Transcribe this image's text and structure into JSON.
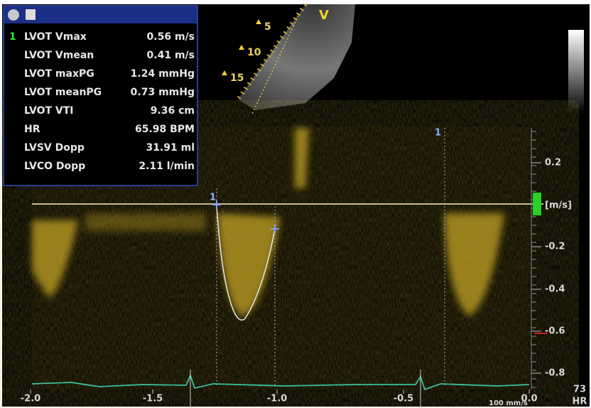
{
  "panel": {
    "rows": [
      {
        "index": "1",
        "label": "LVOT Vmax",
        "value": "0.56 m/s"
      },
      {
        "label": "LVOT Vmean",
        "value": "0.41 m/s"
      },
      {
        "label": "LVOT maxPG",
        "value": "1.24 mmHg"
      },
      {
        "label": "LVOT meanPG",
        "value": "0.73 mmHg"
      },
      {
        "label": "LVOT VTI",
        "value": "9.36 cm"
      },
      {
        "label": "HR",
        "value": "65.98 BPM"
      },
      {
        "label": "LVSV Dopp",
        "value": "31.91 ml"
      },
      {
        "label": "LVCO Dopp",
        "value": "2.11 l/min"
      }
    ]
  },
  "image": {
    "direction": "V",
    "depth_labels": [
      "5",
      "10",
      "15"
    ]
  },
  "spectral": {
    "unit": "[m/s]",
    "velocity_ticks": [
      "0.2",
      "-0.2",
      "-0.4",
      "-0.6",
      "-0.8"
    ],
    "time_ticks": [
      "-2.0",
      "-1.5",
      "-1.0",
      "-0.5",
      "0.0"
    ],
    "cursor_labels": [
      "1",
      "1"
    ],
    "sweep_speed": "100 mm/s",
    "heart_rate": "73",
    "heart_rate_label": "HR"
  }
}
